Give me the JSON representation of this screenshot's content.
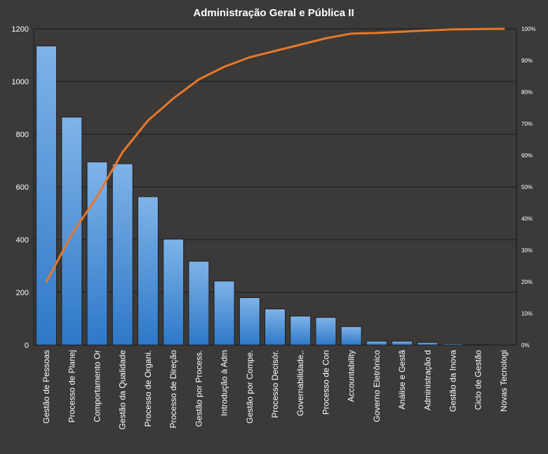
{
  "chart_data": {
    "type": "bar",
    "title": "Administração Geral e Pública II",
    "categories": [
      "Gestão de Pessoas",
      "Processo de Planej",
      "Comportamento Or",
      "Gestão da Qualidade",
      "Processo de Organi.",
      "Processo de Direção",
      "Gestão por Process.",
      "Introdução à Adm",
      "Gestão por Compe.",
      "Processo Decisór.",
      "Governabilidade,.",
      "Processo de Con",
      "Accountability",
      "Governo Eletrônico",
      "Análise e Gestã",
      "Administração d",
      "Gestão da Inova",
      "Ciclo de Gestão",
      "Novas Tecnologi"
    ],
    "series": [
      {
        "type": "bar",
        "axis": "left",
        "values": [
          1135,
          865,
          695,
          688,
          563,
          402,
          318,
          243,
          180,
          137,
          110,
          105,
          70,
          15,
          15,
          10,
          5,
          1,
          0
        ]
      },
      {
        "type": "line",
        "axis": "right",
        "values": [
          0.2,
          0.35,
          0.47,
          0.61,
          0.71,
          0.78,
          0.84,
          0.88,
          0.91,
          0.93,
          0.95,
          0.97,
          0.985,
          0.987,
          0.991,
          0.995,
          0.998,
          0.999,
          1.0
        ]
      }
    ],
    "y_left": {
      "min": 0,
      "max": 1200,
      "ticks": [
        "0",
        "200",
        "400",
        "600",
        "800",
        "1000",
        "1200"
      ]
    },
    "y_right": {
      "min": 0,
      "max": 1,
      "ticks": [
        "0%",
        "10%",
        "20%",
        "30%",
        "40%",
        "50%",
        "60%",
        "70%",
        "80%",
        "90%",
        "100%"
      ]
    },
    "grid": true,
    "legend": "none",
    "colors": {
      "background": "#3b3a39",
      "bar_fill_top": "#7fb3e8",
      "bar_fill_bottom": "#2e78c7",
      "bar_stroke": "#1d1d1d",
      "line": "#e6782a",
      "gridline": "#1a1a1a",
      "text": "#ffffff"
    }
  }
}
